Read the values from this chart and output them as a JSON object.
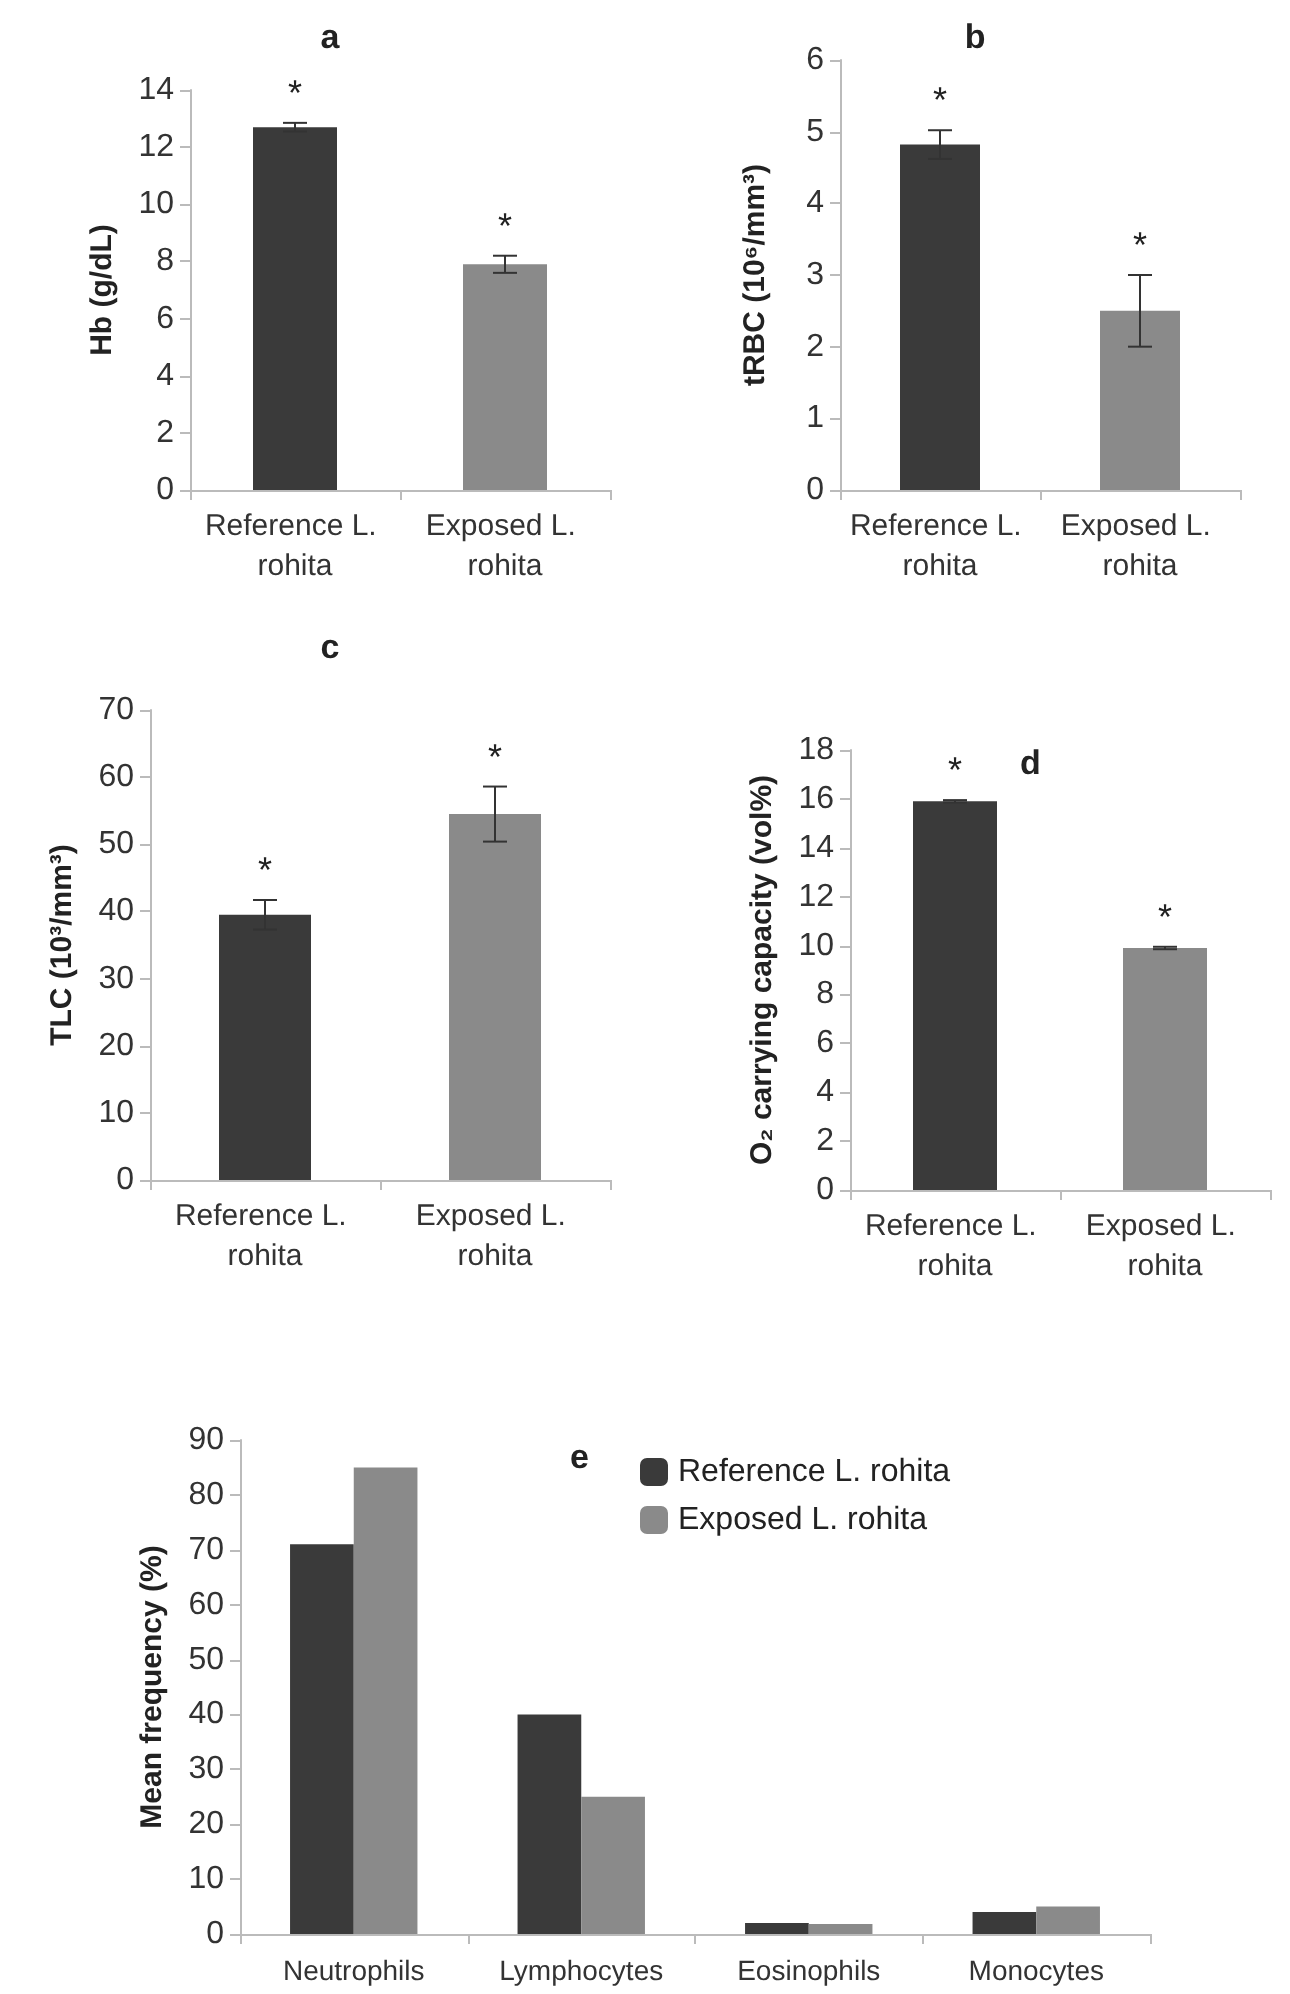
{
  "chart_data": [
    {
      "type": "bar",
      "title": "a",
      "ylabel": "Hb (g/dL)",
      "categories": [
        "Reference L. rohita",
        "Exposed L. rohita"
      ],
      "values": [
        12.7,
        7.9
      ],
      "colors": [
        "#3a3a3a",
        "#8a8a8a"
      ],
      "errors": [
        0.15,
        0.3
      ],
      "ylim": [
        0,
        14
      ],
      "yticks": [
        0,
        2,
        4,
        6,
        8,
        10,
        12,
        14
      ],
      "annotations": [
        "*",
        "*"
      ]
    },
    {
      "type": "bar",
      "title": "b",
      "ylabel": "tRBC (10⁶/mm³)",
      "categories": [
        "Reference L. rohita",
        "Exposed L. rohita"
      ],
      "values": [
        4.82,
        2.5
      ],
      "colors": [
        "#3a3a3a",
        "#8a8a8a"
      ],
      "errors": [
        0.2,
        0.5
      ],
      "ylim": [
        0,
        6
      ],
      "yticks": [
        0,
        1,
        2,
        3,
        4,
        5,
        6
      ],
      "annotations": [
        "*",
        "*"
      ]
    },
    {
      "type": "bar",
      "title": "c",
      "ylabel": "TLC (10³/mm³)",
      "categories": [
        "Reference L. rohita",
        "Exposed L. rohita"
      ],
      "values": [
        39.5,
        54.5
      ],
      "colors": [
        "#3a3a3a",
        "#8a8a8a"
      ],
      "errors": [
        2.2,
        4.1
      ],
      "ylim": [
        0,
        70
      ],
      "yticks": [
        0,
        10,
        20,
        30,
        40,
        50,
        60,
        70
      ],
      "annotations": [
        "*",
        "*"
      ]
    },
    {
      "type": "bar",
      "title": "d",
      "ylabel": "O₂ carrying capacity (vol%)",
      "categories": [
        "Reference L. rohita",
        "Exposed L. rohita"
      ],
      "values": [
        15.9,
        9.9
      ],
      "colors": [
        "#3a3a3a",
        "#8a8a8a"
      ],
      "errors": [
        0.05,
        0.05
      ],
      "ylim": [
        0,
        18
      ],
      "yticks": [
        0,
        2,
        4,
        6,
        8,
        10,
        12,
        14,
        16,
        18
      ],
      "annotations": [
        "*",
        "*"
      ]
    },
    {
      "type": "bar",
      "title": "e",
      "ylabel": "Mean frequency (%)",
      "categories": [
        "Neutrophils",
        "Lymphocytes",
        "Eosinophils",
        "Monocytes"
      ],
      "series": [
        {
          "name": "Reference L. rohita",
          "color": "#3a3a3a",
          "values": [
            71,
            40,
            2,
            4
          ]
        },
        {
          "name": "Exposed L. rohita",
          "color": "#8a8a8a",
          "values": [
            85,
            25,
            1.8,
            5
          ]
        }
      ],
      "ylim": [
        0,
        90
      ],
      "yticks": [
        0,
        10,
        20,
        30,
        40,
        50,
        60,
        70,
        80,
        90
      ],
      "legend": "top"
    }
  ]
}
